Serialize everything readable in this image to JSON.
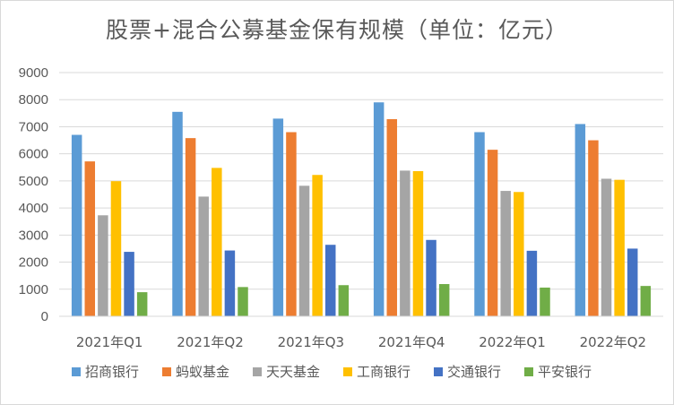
{
  "chart_data": {
    "type": "bar",
    "title": "股票+混合公募基金保有规模（单位：亿元）",
    "categories": [
      "2021年Q1",
      "2021年Q2",
      "2021年Q3",
      "2021年Q4",
      "2022年Q1",
      "2022年Q2"
    ],
    "ylim": [
      0,
      9000
    ],
    "yticks": [
      0,
      1000,
      2000,
      3000,
      4000,
      5000,
      6000,
      7000,
      8000,
      9000
    ],
    "grid": true,
    "legend_position": "bottom",
    "series": [
      {
        "name": "招商银行",
        "color": "#5b9bd5",
        "values": [
          6700,
          7550,
          7300,
          7900,
          6800,
          7100
        ]
      },
      {
        "name": "蚂蚁基金",
        "color": "#ed7d31",
        "values": [
          5720,
          6580,
          6800,
          7280,
          6150,
          6500
        ]
      },
      {
        "name": "天天基金",
        "color": "#a5a5a5",
        "values": [
          3730,
          4420,
          4820,
          5380,
          4630,
          5080
        ]
      },
      {
        "name": "工商银行",
        "color": "#ffc000",
        "values": [
          4990,
          5480,
          5220,
          5360,
          4590,
          5040
        ]
      },
      {
        "name": "交通银行",
        "color": "#4472c4",
        "values": [
          2380,
          2430,
          2640,
          2820,
          2420,
          2500
        ]
      },
      {
        "name": "平安银行",
        "color": "#70ad47",
        "values": [
          890,
          1080,
          1150,
          1190,
          1060,
          1120
        ]
      }
    ]
  }
}
